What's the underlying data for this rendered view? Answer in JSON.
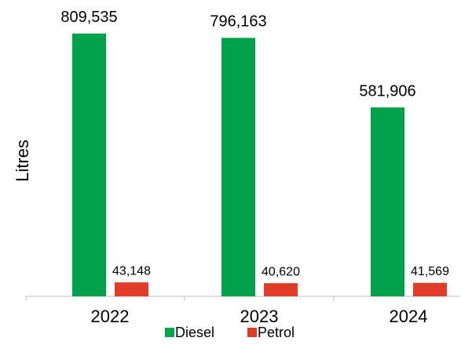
{
  "chart_data": {
    "type": "bar",
    "y_label": "Litres",
    "categories": [
      "2022",
      "2023",
      "2024"
    ],
    "series": [
      {
        "name": "Diesel",
        "color": "#00a14b",
        "values": [
          809535,
          796163,
          581906
        ],
        "value_labels": [
          "809,535",
          "796,163",
          "581,906"
        ]
      },
      {
        "name": "Petrol",
        "color": "#e03c27",
        "values": [
          43148,
          40620,
          41569
        ],
        "value_labels": [
          "43,148",
          "40,620",
          "41,569"
        ]
      }
    ],
    "ylim": [
      0,
      850000
    ],
    "legend": "bottom"
  }
}
